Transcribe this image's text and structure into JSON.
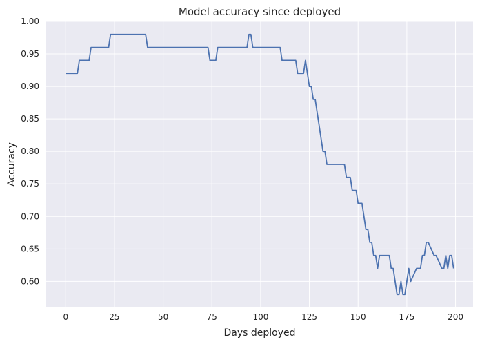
{
  "chart_data": {
    "type": "line",
    "title": "Model accuracy since deployed",
    "xlabel": "Days deployed",
    "ylabel": "Accuracy",
    "xlim": [
      -10,
      209
    ],
    "ylim": [
      0.56,
      1.0
    ],
    "grid": true,
    "x_ticks": [
      0,
      25,
      50,
      75,
      100,
      125,
      150,
      175,
      200
    ],
    "x_tick_labels": [
      "0",
      "25",
      "50",
      "75",
      "100",
      "125",
      "150",
      "175",
      "200"
    ],
    "y_ticks": [
      0.6,
      0.65,
      0.7,
      0.75,
      0.8,
      0.85,
      0.9,
      0.95,
      1.0
    ],
    "y_tick_labels": [
      "0.60",
      "0.65",
      "0.70",
      "0.75",
      "0.80",
      "0.85",
      "0.90",
      "0.95",
      "1.00"
    ],
    "colors": {
      "line": "#4c72b0",
      "background": "#eaeaf2",
      "grid": "#ffffff",
      "text": "#262626"
    },
    "series": [
      {
        "x": [
          0,
          6,
          7,
          12,
          13,
          22,
          23,
          41,
          42,
          73,
          74,
          77,
          78,
          93,
          94,
          95,
          96,
          110,
          111,
          118,
          119,
          122,
          123,
          124,
          125,
          126,
          127,
          128,
          129,
          130,
          131,
          132,
          133,
          134,
          135,
          143,
          144,
          145,
          146,
          147,
          148,
          149,
          150,
          152,
          153,
          154,
          155,
          156,
          157,
          158,
          159,
          160,
          161,
          162,
          163,
          166,
          167,
          168,
          169,
          170,
          171,
          172,
          173,
          174,
          175,
          176,
          177,
          180,
          181,
          182,
          183,
          184,
          185,
          186,
          189,
          190,
          193,
          194,
          195,
          196,
          197,
          198,
          199
        ],
        "values": [
          0.92,
          0.92,
          0.94,
          0.94,
          0.96,
          0.96,
          0.98,
          0.98,
          0.96,
          0.96,
          0.94,
          0.94,
          0.96,
          0.96,
          0.98,
          0.98,
          0.96,
          0.96,
          0.94,
          0.94,
          0.92,
          0.92,
          0.94,
          0.92,
          0.9,
          0.9,
          0.88,
          0.88,
          0.86,
          0.84,
          0.82,
          0.8,
          0.8,
          0.78,
          0.78,
          0.78,
          0.76,
          0.76,
          0.76,
          0.74,
          0.74,
          0.74,
          0.72,
          0.72,
          0.7,
          0.68,
          0.68,
          0.66,
          0.66,
          0.64,
          0.64,
          0.62,
          0.64,
          0.64,
          0.64,
          0.64,
          0.62,
          0.62,
          0.6,
          0.58,
          0.58,
          0.6,
          0.58,
          0.58,
          0.6,
          0.62,
          0.6,
          0.62,
          0.62,
          0.62,
          0.64,
          0.64,
          0.66,
          0.66,
          0.64,
          0.64,
          0.62,
          0.62,
          0.64,
          0.62,
          0.64,
          0.64,
          0.62
        ]
      }
    ]
  }
}
